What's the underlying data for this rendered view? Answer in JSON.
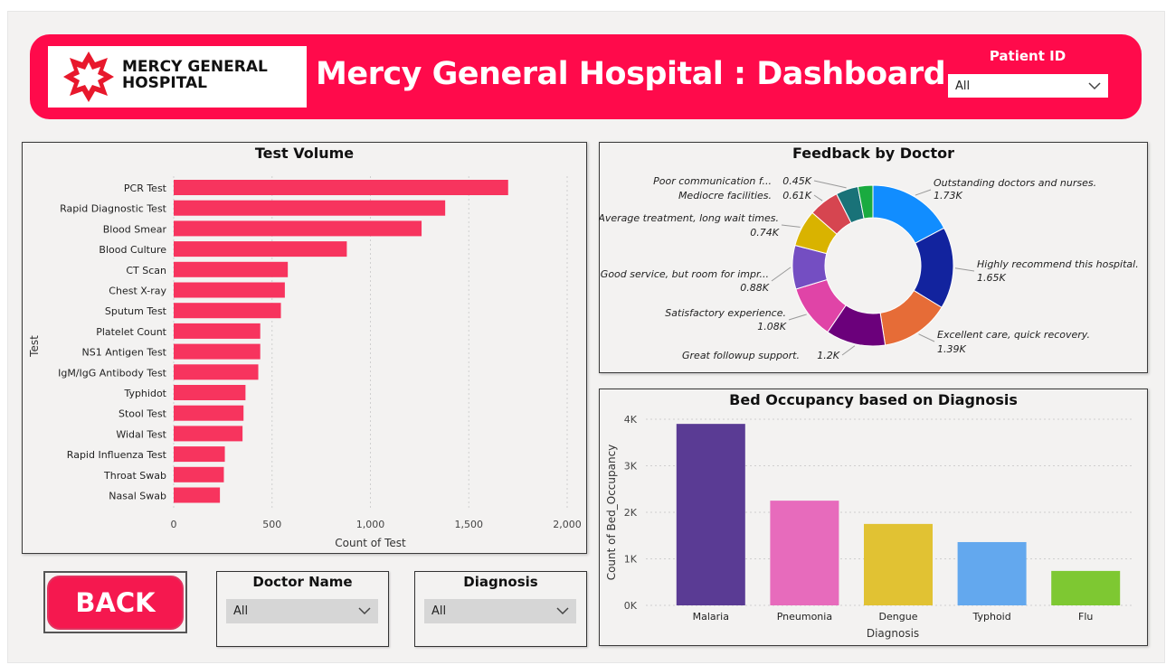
{
  "header": {
    "logo_text_line1": "MERCY GENERAL",
    "logo_text_line2": "HOSPITAL",
    "title": "Mercy General Hospital : Dashboard",
    "patient_id_label": "Patient ID",
    "patient_id_value": "All"
  },
  "colors": {
    "brand": "#ff0a4b",
    "bar": "#f7345e",
    "back_button": "#f5184f"
  },
  "test_volume": {
    "title": "Test Volume",
    "chart_data": {
      "type": "bar",
      "orientation": "horizontal",
      "categories": [
        "PCR Test",
        "Rapid Diagnostic Test",
        "Blood Smear",
        "Blood Culture",
        "CT Scan",
        "Chest X-ray",
        "Sputum Test",
        "Platelet Count",
        "NS1 Antigen Test",
        "IgM/IgG Antibody Test",
        "Typhidot",
        "Stool Test",
        "Widal Test",
        "Rapid Influenza Test",
        "Throat Swab",
        "Nasal Swab"
      ],
      "values": [
        1700,
        1380,
        1260,
        880,
        580,
        565,
        545,
        440,
        440,
        430,
        365,
        355,
        350,
        260,
        255,
        235
      ],
      "xlabel": "Count of Test",
      "ylabel": "Test",
      "xlim": [
        0,
        2000
      ],
      "xticks": [
        "0",
        "500",
        "1,000",
        "1,500",
        "2,000"
      ],
      "grid": true
    }
  },
  "feedback": {
    "title": "Feedback by Doctor",
    "chart_data": {
      "type": "pie",
      "donut": true,
      "labels": [
        "Outstanding doctors and nurses.",
        "Highly recommend this hospital.",
        "Excellent care, quick recovery.",
        "Great followup support.",
        "Satisfactory experience.",
        "Good service, but room for impr...",
        "Average treatment, long wait times.",
        "Mediocre facilities.",
        "Poor communication f...",
        ""
      ],
      "values": [
        1.73,
        1.65,
        1.39,
        1.2,
        1.08,
        0.88,
        0.74,
        0.61,
        0.45,
        0.3
      ],
      "value_labels": [
        "1.73K",
        "1.65K",
        "1.39K",
        "1.2K",
        "1.08K",
        "0.88K",
        "0.74K",
        "0.61K",
        "0.45K",
        ""
      ],
      "colors": [
        "#118dff",
        "#12239e",
        "#e66c37",
        "#6b007b",
        "#e044a7",
        "#744ec2",
        "#d9b300",
        "#d64550",
        "#197278",
        "#1aab40"
      ]
    }
  },
  "bed_occupancy": {
    "title": "Bed Occupancy based on Diagnosis",
    "chart_data": {
      "type": "bar",
      "categories": [
        "Malaria",
        "Pneumonia",
        "Dengue",
        "Typhoid",
        "Flu"
      ],
      "values": [
        3900,
        2250,
        1750,
        1360,
        740
      ],
      "colors": [
        "#5a3b94",
        "#e76bbc",
        "#e1c233",
        "#63a8ee",
        "#7ec832"
      ],
      "xlabel": "Diagnosis",
      "ylabel": "Count of Bed_Occupancy",
      "ylim": [
        0,
        4000
      ],
      "yticks": [
        "0K",
        "1K",
        "2K",
        "3K",
        "4K"
      ],
      "grid": true
    }
  },
  "controls": {
    "back_label": "BACK",
    "doctor_label": "Doctor Name",
    "doctor_value": "All",
    "diagnosis_label": "Diagnosis",
    "diagnosis_value": "All"
  }
}
